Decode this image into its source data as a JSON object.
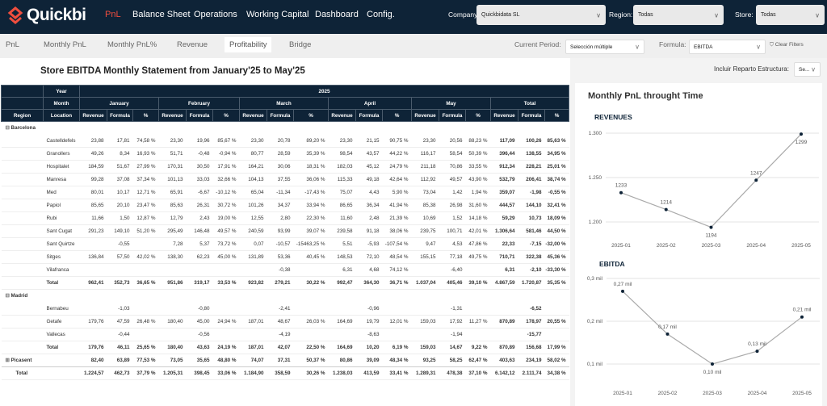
{
  "app": {
    "brand": "Quickbi",
    "brand_color": "#f04e3e",
    "nav_color": "#0e2337"
  },
  "nav": [
    {
      "label": "PnL",
      "active": true
    },
    {
      "label": "Balance Sheet"
    },
    {
      "label": "Operations"
    },
    {
      "label": "Working Capital"
    },
    {
      "label": "Dashboard"
    },
    {
      "label": "Config."
    }
  ],
  "filters": {
    "company": {
      "label": "Company:",
      "value": "Quickbidata SL"
    },
    "region": {
      "label": "Region:",
      "value": "Todas"
    },
    "store": {
      "label": "Store:",
      "value": "Todas"
    }
  },
  "tabs": [
    {
      "label": "PnL"
    },
    {
      "label": "Monthly PnL"
    },
    {
      "label": "Monthly PnL%"
    },
    {
      "label": "Revenue"
    },
    {
      "label": "Profitability",
      "active": true
    },
    {
      "label": "Bridge"
    }
  ],
  "period": {
    "label": "Current Period:",
    "value": "Selección múltiple"
  },
  "formula": {
    "label": "Formula:",
    "value": "EBITDA"
  },
  "clear_filters": "Clear Filters",
  "incluir": {
    "label": "Incluir Reparto Estructura:",
    "value": "Se..."
  },
  "statement": {
    "title": "Store EBITDA Monthly Statement from January'25 to May'25",
    "header": {
      "year_label": "Year",
      "year": "2025",
      "month_label": "Month",
      "region_label": "Region",
      "location_label": "Location",
      "months": [
        "January",
        "February",
        "March",
        "April",
        "May",
        "Total"
      ],
      "cols": [
        "Revenue",
        "Formula",
        "%"
      ]
    },
    "regions": [
      {
        "name": "Barcelona",
        "expanded": true,
        "rows": [
          {
            "location": "Castelldefels",
            "cells": [
              "23,88",
              "17,81",
              "74,58 %",
              "23,30",
              "19,96",
              "85,67 %",
              "23,30",
              "20,78",
              "89,20 %",
              "23,30",
              "21,15",
              "90,75 %",
              "23,30",
              "20,56",
              "88,23 %",
              "117,09",
              "100,26",
              "85,63 %"
            ]
          },
          {
            "location": "Granollers",
            "cells": [
              "49,26",
              "8,34",
              "16,93 %",
              "51,71",
              "-0,48",
              "-0,94 %",
              "80,77",
              "28,59",
              "35,39 %",
              "98,54",
              "43,57",
              "44,22 %",
              "116,17",
              "58,54",
              "50,39 %",
              "396,44",
              "138,55",
              "34,95 %"
            ]
          },
          {
            "location": "Hospitalet",
            "cells": [
              "184,59",
              "51,67",
              "27,99 %",
              "170,31",
              "30,50",
              "17,91 %",
              "164,21",
              "30,06",
              "18,31 %",
              "182,03",
              "45,12",
              "24,79 %",
              "211,18",
              "70,86",
              "33,55 %",
              "912,34",
              "228,21",
              "25,01 %"
            ]
          },
          {
            "location": "Manresa",
            "cells": [
              "99,28",
              "37,08",
              "37,34 %",
              "101,13",
              "33,03",
              "32,66 %",
              "104,13",
              "37,55",
              "36,06 %",
              "115,33",
              "49,18",
              "42,64 %",
              "112,92",
              "49,57",
              "43,90 %",
              "532,79",
              "206,41",
              "38,74 %"
            ]
          },
          {
            "location": "Med",
            "cells": [
              "80,01",
              "10,17",
              "12,71 %",
              "65,91",
              "-6,67",
              "-10,12 %",
              "65,04",
              "-11,34",
              "-17,43 %",
              "75,07",
              "4,43",
              "5,90 %",
              "73,04",
              "1,42",
              "1,94 %",
              "359,07",
              "-1,98",
              "-0,55 %"
            ]
          },
          {
            "location": "Papiol",
            "cells": [
              "85,65",
              "20,10",
              "23,47 %",
              "85,63",
              "26,31",
              "30,72 %",
              "101,26",
              "34,37",
              "33,94 %",
              "86,65",
              "36,34",
              "41,94 %",
              "85,38",
              "26,98",
              "31,60 %",
              "444,57",
              "144,10",
              "32,41 %"
            ]
          },
          {
            "location": "Rubi",
            "cells": [
              "11,66",
              "1,50",
              "12,87 %",
              "12,79",
              "2,43",
              "19,00 %",
              "12,55",
              "2,80",
              "22,30 %",
              "11,60",
              "2,48",
              "21,39 %",
              "10,69",
              "1,52",
              "14,18 %",
              "59,29",
              "10,73",
              "18,09 %"
            ]
          },
          {
            "location": "Sant Cugat",
            "cells": [
              "291,23",
              "149,10",
              "51,20 %",
              "295,49",
              "146,48",
              "49,57 %",
              "240,59",
              "93,99",
              "39,07 %",
              "239,58",
              "91,18",
              "38,06 %",
              "239,75",
              "100,71",
              "42,01 %",
              "1.306,64",
              "581,46",
              "44,50 %"
            ]
          },
          {
            "location": "Sant Quirtze",
            "cells": [
              "",
              "-0,55",
              "",
              "7,28",
              "5,37",
              "73,72 %",
              "0,07",
              "-10,57",
              "-15463,25 %",
              "5,51",
              "-5,93",
              "-107,54 %",
              "9,47",
              "4,53",
              "47,86 %",
              "22,33",
              "-7,15",
              "-32,00 %"
            ]
          },
          {
            "location": "Sitges",
            "cells": [
              "136,84",
              "57,50",
              "42,02 %",
              "138,30",
              "62,23",
              "45,00 %",
              "131,89",
              "53,36",
              "40,45 %",
              "148,53",
              "72,10",
              "48,54 %",
              "155,15",
              "77,18",
              "49,75 %",
              "710,71",
              "322,38",
              "45,36 %"
            ]
          },
          {
            "location": "Vilafranca",
            "cells": [
              "",
              "",
              "",
              "",
              "",
              "",
              "",
              "-0,38",
              "",
              "6,31",
              "4,68",
              "74,12 %",
              "",
              "-6,40",
              "",
              "6,31",
              "-2,10",
              "-33,30 %"
            ]
          }
        ],
        "total": {
          "label": "Total",
          "cells": [
            "962,41",
            "352,73",
            "36,65 %",
            "951,86",
            "319,17",
            "33,53 %",
            "923,82",
            "279,21",
            "30,22 %",
            "992,47",
            "364,30",
            "36,71 %",
            "1.037,04",
            "405,46",
            "39,10 %",
            "4.867,59",
            "1.720,87",
            "35,35 %"
          ]
        }
      },
      {
        "name": "Madrid",
        "expanded": true,
        "rows": [
          {
            "location": "Bernabeu",
            "cells": [
              "",
              "-1,03",
              "",
              "",
              "-0,80",
              "",
              "",
              "-2,41",
              "",
              "",
              "-0,96",
              "",
              "",
              "-1,31",
              "",
              "",
              "-6,52",
              ""
            ]
          },
          {
            "location": "Getafe",
            "cells": [
              "179,76",
              "47,59",
              "26,48 %",
              "180,40",
              "45,00",
              "24,94 %",
              "187,01",
              "48,67",
              "26,03 %",
              "164,69",
              "19,79",
              "12,01 %",
              "159,03",
              "17,92",
              "11,27 %",
              "870,89",
              "178,97",
              "20,55 %"
            ]
          },
          {
            "location": "Vallecas",
            "cells": [
              "",
              "-0,44",
              "",
              "",
              "-0,56",
              "",
              "",
              "-4,19",
              "",
              "",
              "-8,63",
              "",
              "",
              "-1,94",
              "",
              "",
              "-15,77",
              ""
            ]
          }
        ],
        "total": {
          "label": "Total",
          "cells": [
            "179,76",
            "46,11",
            "25,65 %",
            "180,40",
            "43,63",
            "24,19 %",
            "187,01",
            "42,07",
            "22,50 %",
            "164,69",
            "10,20",
            "6,19 %",
            "159,03",
            "14,67",
            "9,22 %",
            "870,89",
            "156,68",
            "17,99 %"
          ]
        }
      },
      {
        "name": "Picasent",
        "expanded": false,
        "cells": [
          "82,40",
          "63,89",
          "77,53 %",
          "73,05",
          "35,65",
          "48,80 %",
          "74,07",
          "37,31",
          "50,37 %",
          "80,86",
          "39,09",
          "48,34 %",
          "93,25",
          "58,25",
          "62,47 %",
          "403,63",
          "234,19",
          "58,02 %"
        ]
      }
    ],
    "grand_total": {
      "label": "Total",
      "cells": [
        "1.224,57",
        "462,73",
        "37,79 %",
        "1.205,31",
        "398,45",
        "33,06 %",
        "1.184,90",
        "358,59",
        "30,26 %",
        "1.238,03",
        "413,59",
        "33,41 %",
        "1.289,31",
        "478,38",
        "37,10 %",
        "6.142,12",
        "2.111,74",
        "34,38 %"
      ]
    }
  },
  "charts_title": "Monthly PnL throught Time",
  "chart_data": [
    {
      "type": "line",
      "title": "REVENUES",
      "categories": [
        "2025-01",
        "2025-02",
        "2025-03",
        "2025-04",
        "2025-05"
      ],
      "values": [
        1233,
        1214,
        1194,
        1247,
        1299
      ],
      "data_labels": [
        "1233",
        "1214",
        "1194",
        "1247",
        "1299"
      ],
      "yticks": [
        "1.200",
        "1.250",
        "1.300"
      ],
      "ytick_values": [
        1200,
        1250,
        1300
      ],
      "ylim": [
        1185,
        1305
      ],
      "grid": true,
      "line_color": "#aaaaaa",
      "marker_color": "#0e2337"
    },
    {
      "type": "line",
      "title": "EBITDA",
      "categories": [
        "2025-01",
        "2025-02",
        "2025-03",
        "2025-04",
        "2025-05"
      ],
      "values": [
        0.27,
        0.17,
        0.1,
        0.13,
        0.21
      ],
      "data_labels": [
        "0,27 mil",
        "0,17 mil",
        "0,10 mil",
        "0,13 mil",
        "0,21 mil"
      ],
      "yticks": [
        "0,1 mil",
        "0,2 mil",
        "0,3 mil"
      ],
      "ytick_values": [
        0.1,
        0.2,
        0.3
      ],
      "ylim": [
        0.1,
        0.3
      ],
      "grid": true,
      "line_color": "#aaaaaa",
      "marker_color": "#0e2337"
    }
  ]
}
